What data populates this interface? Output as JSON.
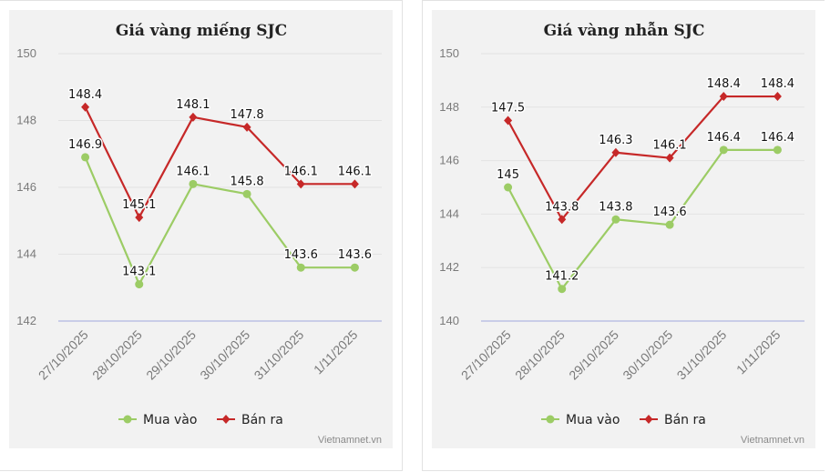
{
  "chart_data": [
    {
      "type": "line",
      "title": "Giá vàng miếng SJC",
      "categories": [
        "27/10/2025",
        "28/10/2025",
        "29/10/2025",
        "30/10/2025",
        "31/10/2025",
        "1/11/2025"
      ],
      "ylim": [
        142,
        150
      ],
      "yticks": [
        142,
        144,
        146,
        148,
        150
      ],
      "grid": true,
      "legend": "bottom-center",
      "series": [
        {
          "name": "Mua vào",
          "color": "#9ccc65",
          "marker": "circle",
          "values": [
            146.9,
            143.1,
            146.1,
            145.8,
            143.6,
            143.6
          ]
        },
        {
          "name": "Bán ra",
          "color": "#c62828",
          "marker": "diamond",
          "values": [
            148.4,
            145.1,
            148.1,
            147.8,
            146.1,
            146.1
          ]
        }
      ],
      "credit": "Vietnamnet.vn"
    },
    {
      "type": "line",
      "title": "Giá vàng nhẫn SJC",
      "categories": [
        "27/10/2025",
        "28/10/2025",
        "29/10/2025",
        "30/10/2025",
        "31/10/2025",
        "1/11/2025"
      ],
      "ylim": [
        140,
        150
      ],
      "yticks": [
        140,
        142,
        144,
        146,
        148,
        150
      ],
      "grid": true,
      "legend": "bottom-center",
      "series": [
        {
          "name": "Mua vào",
          "color": "#9ccc65",
          "marker": "circle",
          "values": [
            145,
            141.2,
            143.8,
            143.6,
            146.4,
            146.4
          ]
        },
        {
          "name": "Bán ra",
          "color": "#c62828",
          "marker": "diamond",
          "values": [
            147.5,
            143.8,
            146.3,
            146.1,
            148.4,
            148.4
          ]
        }
      ],
      "credit": "Vietnamnet.vn"
    }
  ]
}
